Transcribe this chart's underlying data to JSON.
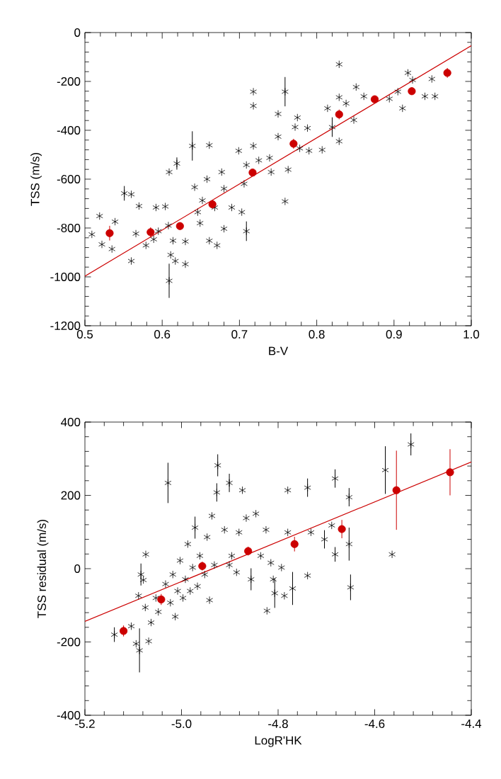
{
  "chart_data": [
    {
      "type": "scatter",
      "xlabel": "B-V",
      "ylabel": "TSS (m/s)",
      "xlim": [
        0.5,
        1.0
      ],
      "ylim": [
        -1200,
        0
      ],
      "xticks": [
        0.5,
        0.6,
        0.7,
        0.8,
        0.9,
        {
          "value": 1.0,
          "label": "1.0"
        }
      ],
      "yticks": [
        -1200,
        -1000,
        -800,
        -600,
        -400,
        -200,
        0
      ],
      "series": [
        {
          "marker": "cross",
          "color": "#000000",
          "x": [
            0.509,
            0.519,
            0.522,
            0.539,
            0.535,
            0.551,
            0.56,
            0.57,
            0.56,
            0.566,
            0.579,
            0.589,
            0.592,
            0.595,
            0.604,
            0.608,
            0.609,
            0.611,
            0.614,
            0.617,
            0.609,
            0.619,
            0.63,
            0.63,
            0.639,
            0.642,
            0.646,
            0.649,
            0.652,
            0.658,
            0.661,
            0.661,
            0.671,
            0.668,
            0.677,
            0.68,
            0.68,
            0.69,
            0.699,
            0.703,
            0.706,
            0.709,
            0.709,
            0.718,
            0.718,
            0.718,
            0.725,
            0.739,
            0.741,
            0.75,
            0.75,
            0.759,
            0.759,
            0.763,
            0.772,
            0.775,
            0.778,
            0.788,
            0.79,
            0.807,
            0.814,
            0.82,
            0.829,
            0.829,
            0.829,
            0.838,
            0.848,
            0.851,
            0.861,
            0.894,
            0.905,
            0.911,
            0.918,
            0.924,
            0.94,
            0.949,
            0.953
          ],
          "values": [
            -826,
            -751,
            -867,
            -774,
            -886,
            -658,
            -662,
            -710,
            -935,
            -823,
            -871,
            -846,
            -716,
            -813,
            -712,
            -790,
            -1016,
            -910,
            -852,
            -935,
            -571,
            -536,
            -855,
            -948,
            -464,
            -633,
            -735,
            -780,
            -687,
            -600,
            -461,
            -852,
            -871,
            -716,
            -571,
            -639,
            -803,
            -716,
            -484,
            -735,
            -619,
            -813,
            -542,
            -242,
            -300,
            -464,
            -523,
            -513,
            -571,
            -426,
            -333,
            -242,
            -691,
            -561,
            -387,
            -348,
            -474,
            -391,
            -484,
            -480,
            -310,
            -387,
            -445,
            -265,
            -130,
            -290,
            -358,
            -223,
            -261,
            -271,
            -242,
            -310,
            -165,
            -194,
            -261,
            -190,
            -261
          ],
          "errors": [
            null,
            null,
            null,
            null,
            null,
            30,
            null,
            null,
            null,
            null,
            null,
            null,
            null,
            null,
            null,
            null,
            70,
            null,
            null,
            null,
            null,
            25,
            null,
            null,
            60,
            null,
            null,
            null,
            null,
            null,
            null,
            null,
            null,
            null,
            null,
            null,
            null,
            null,
            null,
            null,
            null,
            40,
            null,
            null,
            null,
            null,
            null,
            null,
            null,
            null,
            null,
            60,
            null,
            null,
            null,
            null,
            null,
            null,
            null,
            null,
            null,
            40,
            null,
            null,
            null,
            null,
            null,
            null,
            null,
            null,
            null,
            null,
            null,
            null,
            null,
            null,
            null
          ]
        },
        {
          "marker": "circle",
          "color": "#cc0000",
          "x": [
            0.532,
            0.585,
            0.623,
            0.665,
            0.717,
            0.77,
            0.829,
            0.875,
            0.923,
            0.969
          ],
          "values": [
            -821,
            -817,
            -792,
            -703,
            -573,
            -455,
            -335,
            -273,
            -240,
            -165
          ],
          "errors": [
            30,
            20,
            15,
            15,
            15,
            20,
            20,
            10,
            15,
            20
          ]
        },
        {
          "type": "line",
          "color": "#cc0000",
          "x": [
            0.5,
            1.0
          ],
          "values": [
            -997,
            -54
          ]
        }
      ]
    },
    {
      "type": "scatter",
      "xlabel": "LogR'HK",
      "ylabel": "TSS residual (m/s)",
      "xlim": [
        -5.2,
        -4.4
      ],
      "ylim": [
        -400,
        400
      ],
      "xticks": [
        -5.2,
        {
          "value": -5.0,
          "label": "-5.0"
        },
        -4.8,
        -4.6,
        -4.4
      ],
      "yticks": [
        -400,
        -200,
        0,
        200,
        400
      ],
      "series": [
        {
          "marker": "cross",
          "color": "#000000",
          "x": [
            -5.139,
            -5.104,
            -5.094,
            -5.087,
            -5.089,
            -5.084,
            -5.079,
            -5.074,
            -5.075,
            -5.068,
            -5.063,
            -5.053,
            -5.048,
            -5.033,
            -5.028,
            -5.023,
            -5.018,
            -5.013,
            -5.008,
            -5.003,
            -4.997,
            -4.992,
            -4.987,
            -4.982,
            -4.977,
            -4.972,
            -4.967,
            -4.962,
            -4.952,
            -4.947,
            -4.942,
            -4.937,
            -4.932,
            -4.927,
            -4.925,
            -4.911,
            -4.901,
            -4.901,
            -4.896,
            -4.886,
            -4.881,
            -4.874,
            -4.866,
            -4.856,
            -4.846,
            -4.836,
            -4.825,
            -4.823,
            -4.815,
            -4.81,
            -4.807,
            -4.793,
            -4.787,
            -4.78,
            -4.78,
            -4.77,
            -4.739,
            -4.739,
            -4.732,
            -4.704,
            -4.689,
            -4.682,
            -4.682,
            -4.653,
            -4.653,
            -4.65,
            -4.578,
            -4.564,
            -4.525
          ],
          "values": [
            -180,
            -157,
            -205,
            -223,
            -74,
            -16,
            -31,
            39,
            -106,
            -198,
            -147,
            -80,
            -118,
            -42,
            234,
            -93,
            -16,
            -131,
            -61,
            22,
            -80,
            -29,
            67,
            -61,
            3,
            112,
            -48,
            35,
            -16,
            86,
            -86,
            144,
            10,
            208,
            282,
            106,
            234,
            10,
            35,
            -10,
            99,
            214,
            138,
            -29,
            150,
            35,
            106,
            -115,
            16,
            -29,
            -67,
            3,
            -74,
            214,
            99,
            -54,
            221,
            -19,
            99,
            80,
            118,
            246,
            39,
            195,
            67,
            -51,
            269,
            39,
            339
          ],
          "errors": [
            20,
            null,
            null,
            60,
            null,
            30,
            null,
            null,
            null,
            null,
            null,
            null,
            null,
            null,
            55,
            null,
            null,
            null,
            null,
            null,
            null,
            null,
            null,
            null,
            null,
            30,
            null,
            null,
            null,
            null,
            null,
            null,
            null,
            25,
            30,
            null,
            25,
            null,
            null,
            null,
            null,
            null,
            null,
            30,
            null,
            null,
            null,
            null,
            null,
            null,
            40,
            null,
            null,
            null,
            null,
            45,
            25,
            null,
            null,
            25,
            null,
            25,
            20,
            25,
            45,
            35,
            65,
            null,
            30
          ]
        },
        {
          "marker": "circle",
          "color": "#cc0000",
          "x": [
            -5.12,
            -5.042,
            -4.957,
            -4.862,
            -4.766,
            -4.668,
            -4.555,
            -4.444
          ],
          "values": [
            -170,
            -84,
            7,
            48,
            67,
            108,
            214,
            263
          ],
          "errors": [
            15,
            15,
            12,
            12,
            20,
            25,
            108,
            63
          ]
        },
        {
          "type": "line",
          "color": "#cc0000",
          "x": [
            -5.2,
            -4.4
          ],
          "values": [
            -144,
            291
          ]
        }
      ]
    }
  ]
}
